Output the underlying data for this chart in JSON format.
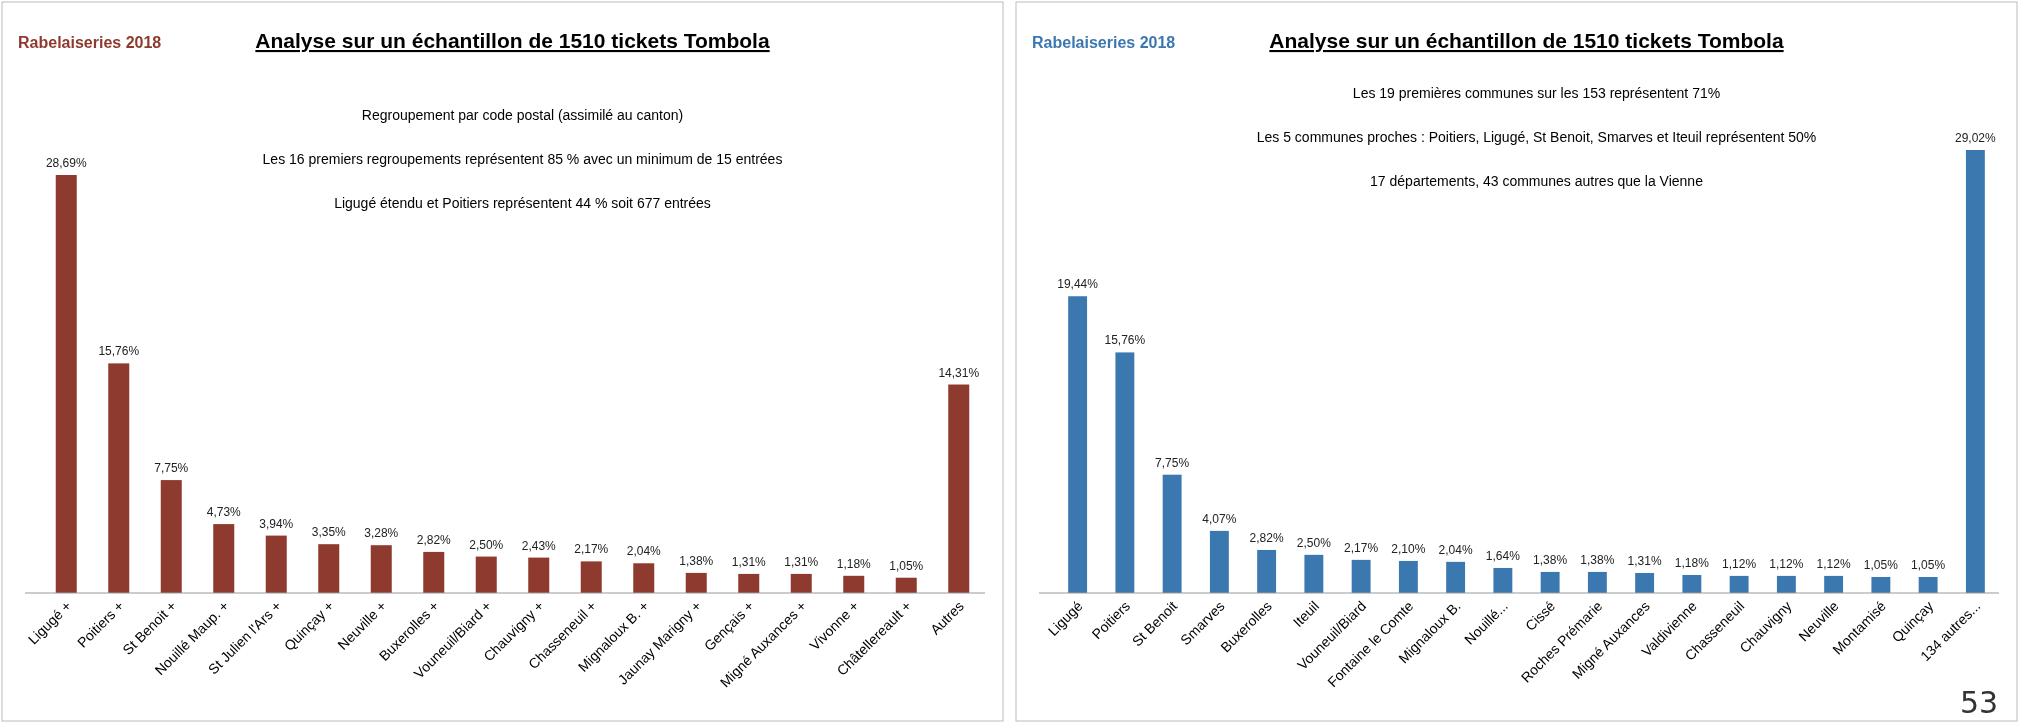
{
  "chart_data": [
    {
      "type": "bar",
      "title": "Analyse sur un échantillon de 1510 tickets Tombola",
      "subtitle": "Rabelaiseries 2018",
      "annotations": [
        "Regroupement par code postal (assimilé au canton)",
        "Les 16 premiers regroupements représentent 85 % avec un minimum de 15 entrées",
        "Ligugé étendu et Poitiers représentent 44 % soit 677 entrées"
      ],
      "categories": [
        "Ligugé +",
        "Poitiers +",
        "St Benoit +",
        "Nouillé Maup. +",
        "St Julien l'Ars +",
        "Quinçay +",
        "Neuville +",
        "Buxerolles +",
        "Vouneuil/Biard +",
        "Chauvigny +",
        "Chasseneuil +",
        "Mignaloux B. +",
        "Jaunay Marigny +",
        "Gençais +",
        "Migné Auxances +",
        "Vivonne +",
        "Châtellereault +",
        "Autres"
      ],
      "series": [
        {
          "color": "#8e3a2e",
          "values": [
            28.69,
            15.76,
            7.75,
            4.73,
            3.94,
            3.35,
            3.28,
            2.82,
            2.5,
            2.43,
            2.17,
            2.04,
            1.38,
            1.31,
            1.31,
            1.18,
            1.05,
            14.31
          ],
          "value_labels": [
            "28,69%",
            "15,76%",
            "7,75%",
            "4,73%",
            "3,94%",
            "3,35%",
            "3,28%",
            "2,82%",
            "2,50%",
            "2,43%",
            "2,17%",
            "2,04%",
            "1,38%",
            "1,31%",
            "1,31%",
            "1,18%",
            "1,05%",
            "14,31%"
          ]
        }
      ]
    },
    {
      "type": "bar",
      "title": "Analyse sur un échantillon de 1510 tickets Tombola",
      "subtitle": "Rabelaiseries 2018",
      "annotations": [
        "Les 19 premières communes sur les 153 représentent 71%",
        "Les 5 communes proches : Poitiers, Ligugé, St Benoit, Smarves et Iteuil représentent 50%",
        "17 départements, 43 communes autres que la Vienne",
        "53"
      ],
      "categories": [
        "Ligugé",
        "Poitiers",
        "St Benoit",
        "Smarves",
        "Buxerolles",
        "Iteuil",
        "Vouneuil/Biard",
        "Fontaine le Comte",
        "Mignaloux B.",
        "Nouillé...",
        "Cissé",
        "Roches Prémarie",
        "Migné Auxances",
        "Valdivienne",
        "Chasseneuil",
        "Chauvigny",
        "Neuville",
        "Montamisé",
        "Quinçay",
        "134 autres..."
      ],
      "series": [
        {
          "color": "#3b78b0",
          "values": [
            19.44,
            15.76,
            7.75,
            4.07,
            2.82,
            2.5,
            2.17,
            2.1,
            2.04,
            1.64,
            1.38,
            1.38,
            1.31,
            1.18,
            1.12,
            1.12,
            1.12,
            1.05,
            1.05,
            29.02
          ],
          "value_labels": [
            "19,44%",
            "15,76%",
            "7,75%",
            "4,07%",
            "2,82%",
            "2,50%",
            "2,17%",
            "2,10%",
            "2,04%",
            "1,64%",
            "1,38%",
            "1,38%",
            "1,31%",
            "1,18%",
            "1,12%",
            "1,12%",
            "1,12%",
            "1,05%",
            "1,05%",
            "29,02%"
          ]
        }
      ]
    }
  ]
}
